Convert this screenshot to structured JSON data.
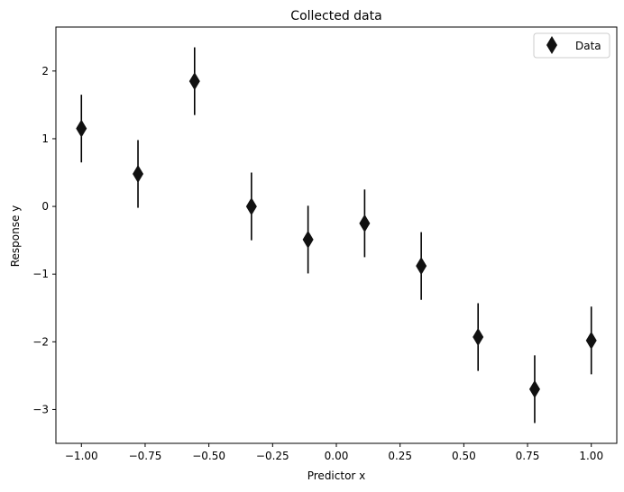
{
  "chart_data": {
    "type": "scatter",
    "title": "Collected data",
    "xlabel": "Predictor x",
    "ylabel": "Response y",
    "xlim": [
      -1.1,
      1.1
    ],
    "ylim": [
      -3.5,
      2.65
    ],
    "xticks": [
      -1.0,
      -0.75,
      -0.5,
      -0.25,
      0.0,
      0.25,
      0.5,
      0.75,
      1.0
    ],
    "xtick_labels": [
      "−1.00",
      "−0.75",
      "−0.50",
      "−0.25",
      "0.00",
      "0.25",
      "0.50",
      "0.75",
      "1.00"
    ],
    "yticks": [
      -3,
      -2,
      -1,
      0,
      1,
      2
    ],
    "ytick_labels": [
      "−3",
      "−2",
      "−1",
      "0",
      "1",
      "2"
    ],
    "grid": false,
    "legend_position": "top-right",
    "marker": "diamond",
    "error_bar": 0.5,
    "series": [
      {
        "name": "Data",
        "color": "#111111",
        "x": [
          -1.0,
          -0.778,
          -0.556,
          -0.333,
          -0.111,
          0.111,
          0.333,
          0.556,
          0.778,
          1.0
        ],
        "y": [
          1.15,
          0.48,
          1.85,
          0.0,
          -0.49,
          -0.25,
          -0.88,
          -1.93,
          -2.7,
          -1.98
        ]
      }
    ]
  }
}
